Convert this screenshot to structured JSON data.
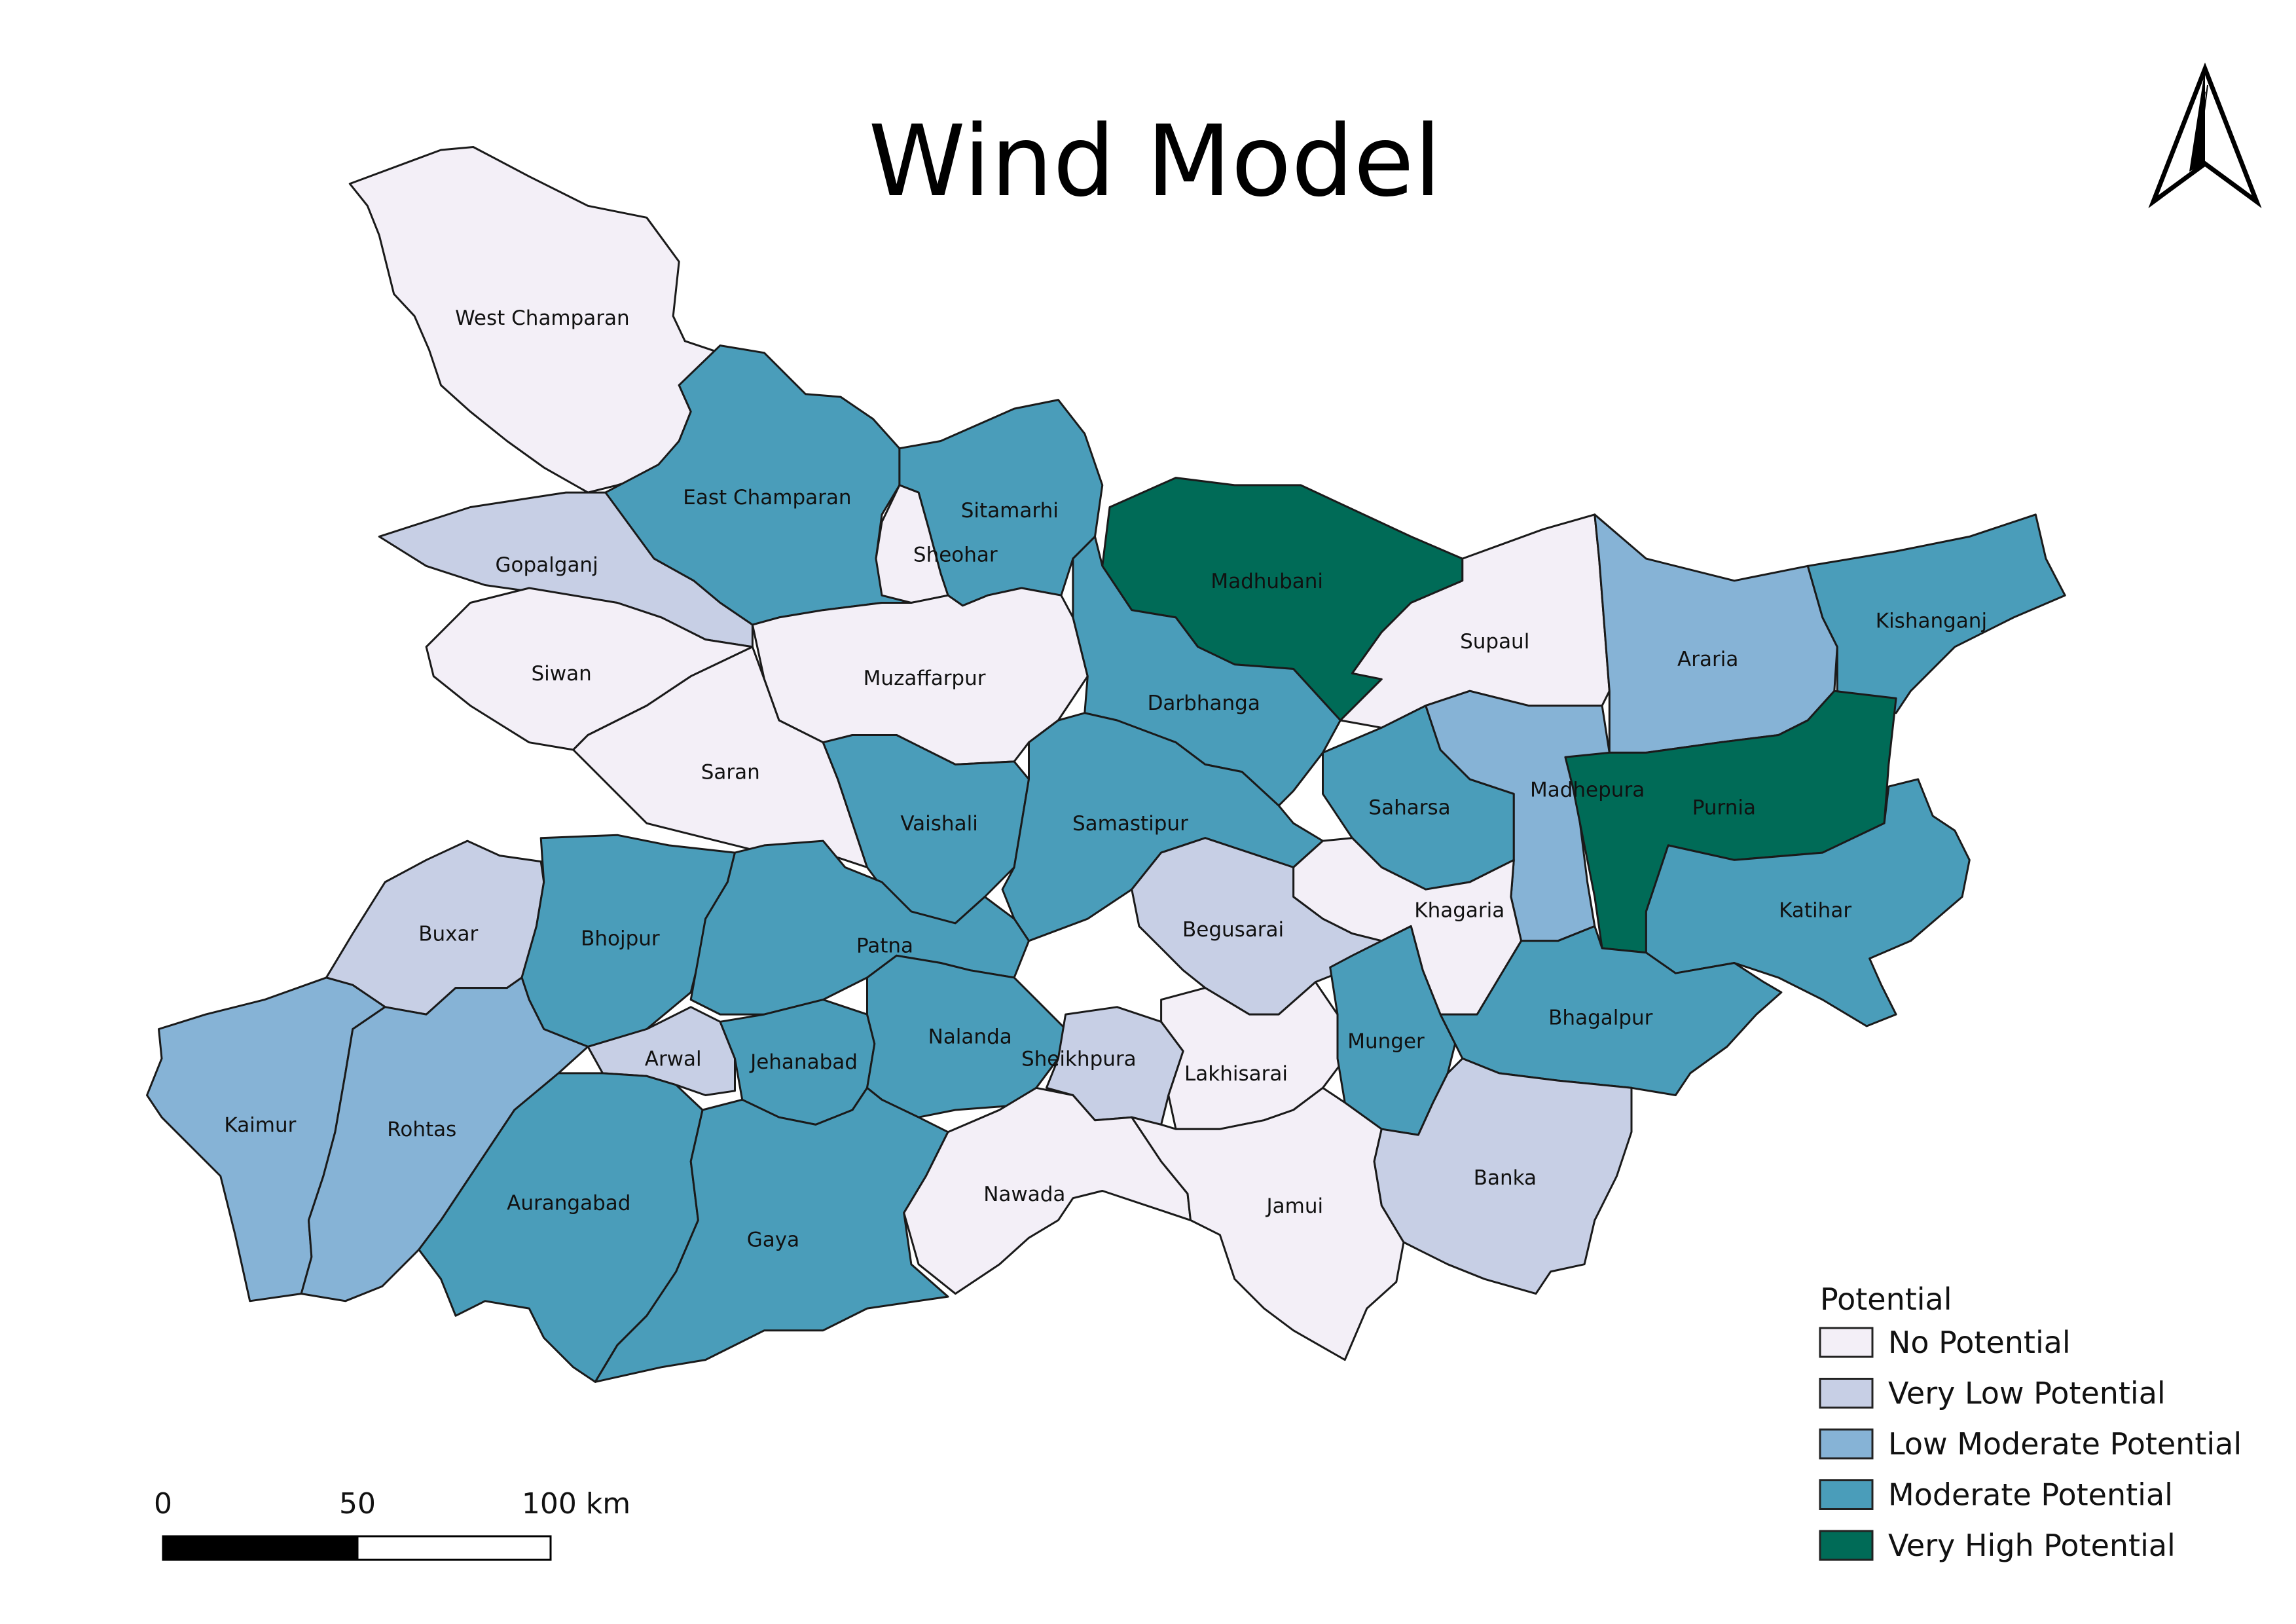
{
  "title": "Wind Model",
  "colors": {
    "No Potential": "#f3eff7",
    "Very Low Potential": "#c7cfe5",
    "Low Moderate Potential": "#86b3d6",
    "Moderate Potential": "#4a9dba",
    "Very High Potential": "#006b57"
  },
  "legend": {
    "title": "Potential",
    "items": [
      {
        "label": "No Potential",
        "class": "No Potential"
      },
      {
        "label": "Very Low Potential",
        "class": "Very Low Potential"
      },
      {
        "label": "Low Moderate Potential",
        "class": "Low Moderate Potential"
      },
      {
        "label": "Moderate Potential",
        "class": "Moderate Potential"
      },
      {
        "label": "Very High Potential",
        "class": "Very High Potential"
      }
    ]
  },
  "scale_bar": {
    "labels": [
      "0",
      "50",
      "100 km"
    ]
  },
  "north_arrow": {
    "icon": "north-arrow-icon"
  },
  "districts": [
    {
      "name": "West Champaran",
      "class": "No Potential"
    },
    {
      "name": "East Champaran",
      "class": "Moderate Potential"
    },
    {
      "name": "Sitamarhi",
      "class": "Moderate Potential"
    },
    {
      "name": "Sheohar",
      "class": "No Potential"
    },
    {
      "name": "Madhubani",
      "class": "Very High Potential"
    },
    {
      "name": "Supaul",
      "class": "No Potential"
    },
    {
      "name": "Araria",
      "class": "Low Moderate Potential"
    },
    {
      "name": "Kishanganj",
      "class": "Moderate Potential"
    },
    {
      "name": "Gopalganj",
      "class": "Very Low Potential"
    },
    {
      "name": "Siwan",
      "class": "No Potential"
    },
    {
      "name": "Muzaffarpur",
      "class": "No Potential"
    },
    {
      "name": "Darbhanga",
      "class": "Moderate Potential"
    },
    {
      "name": "Saran",
      "class": "No Potential"
    },
    {
      "name": "Vaishali",
      "class": "Moderate Potential"
    },
    {
      "name": "Samastipur",
      "class": "Moderate Potential"
    },
    {
      "name": "Saharsa",
      "class": "Moderate Potential"
    },
    {
      "name": "Madhepura",
      "class": "Low Moderate Potential"
    },
    {
      "name": "Purnia",
      "class": "Very High Potential"
    },
    {
      "name": "Katihar",
      "class": "Moderate Potential"
    },
    {
      "name": "Khagaria",
      "class": "No Potential"
    },
    {
      "name": "Begusarai",
      "class": "Very Low Potential"
    },
    {
      "name": "Buxar",
      "class": "Very Low Potential"
    },
    {
      "name": "Bhojpur",
      "class": "Moderate Potential"
    },
    {
      "name": "Patna",
      "class": "Moderate Potential"
    },
    {
      "name": "Kaimur",
      "class": "Low Moderate Potential"
    },
    {
      "name": "Rohtas",
      "class": "Low Moderate Potential"
    },
    {
      "name": "Arwal",
      "class": "Very Low Potential"
    },
    {
      "name": "Jehanabad",
      "class": "Moderate Potential"
    },
    {
      "name": "Nalanda",
      "class": "Moderate Potential"
    },
    {
      "name": "Sheikhpura",
      "class": "Very Low Potential"
    },
    {
      "name": "Lakhisarai",
      "class": "No Potential"
    },
    {
      "name": "Munger",
      "class": "Moderate Potential"
    },
    {
      "name": "Bhagalpur",
      "class": "Moderate Potential"
    },
    {
      "name": "Aurangabad",
      "class": "Moderate Potential"
    },
    {
      "name": "Gaya",
      "class": "Moderate Potential"
    },
    {
      "name": "Nawada",
      "class": "No Potential"
    },
    {
      "name": "Jamui",
      "class": "No Potential"
    },
    {
      "name": "Banka",
      "class": "Very Low Potential"
    }
  ]
}
